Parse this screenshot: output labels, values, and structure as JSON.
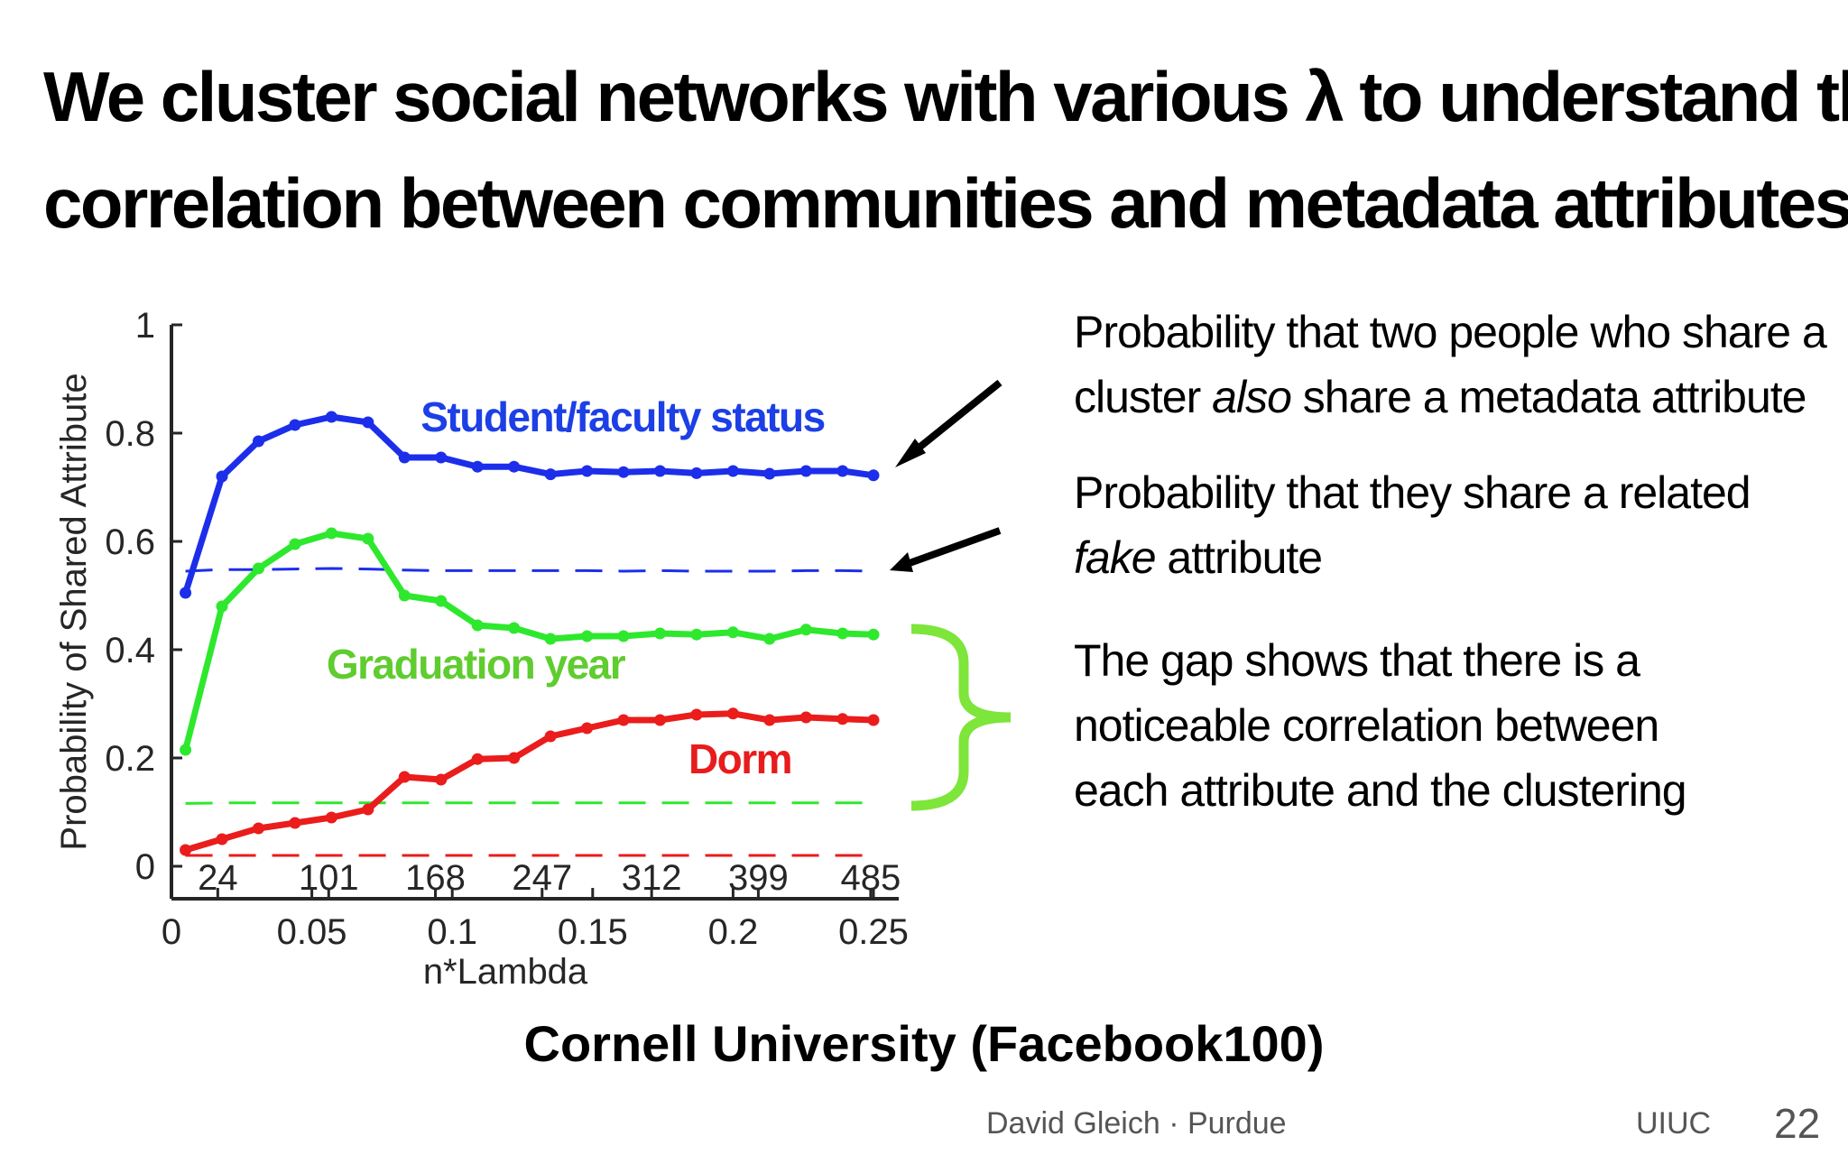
{
  "slide": {
    "title_lines": [
      "We cluster social networks with various λ to understand the",
      "correlation between communities and metadata attributes"
    ],
    "notes": {
      "note1": [
        "Probability that two people who share a",
        "cluster ",
        "also",
        " share a metadata attribute"
      ],
      "note2": [
        "Probability that they share a related",
        "fake",
        " attribute"
      ],
      "note3": [
        "The gap shows that there is a",
        "noticeable correlation between",
        "each attribute and the clustering"
      ]
    },
    "caption": "Cornell University (Facebook100)",
    "footer": {
      "author": "David Gleich · Purdue",
      "venue": "UIUC",
      "page": "22"
    }
  },
  "chart_data": {
    "type": "line",
    "xlabel": "n*Lambda",
    "ylabel": "Probability of Shared Attribute",
    "xlim": [
      0,
      0.25
    ],
    "ylim": [
      0,
      1
    ],
    "xticks": [
      "0",
      "0.05",
      "0.1",
      "0.15",
      "0.2",
      "0.25"
    ],
    "yticks": [
      "0",
      "0.2",
      "0.4",
      "0.6",
      "0.8",
      "1"
    ],
    "secondary_x_labels": [
      {
        "x": 0.0165,
        "label": "24"
      },
      {
        "x": 0.056,
        "label": "101"
      },
      {
        "x": 0.094,
        "label": "168"
      },
      {
        "x": 0.132,
        "label": "247"
      },
      {
        "x": 0.171,
        "label": "312"
      },
      {
        "x": 0.209,
        "label": "399"
      },
      {
        "x": 0.249,
        "label": "485"
      }
    ],
    "x": [
      0.005,
      0.018,
      0.031,
      0.044,
      0.057,
      0.07,
      0.083,
      0.096,
      0.109,
      0.122,
      0.135,
      0.148,
      0.161,
      0.174,
      0.187,
      0.2,
      0.213,
      0.226,
      0.239,
      0.25
    ],
    "series": [
      {
        "name": "Student/faculty status",
        "color": "#1c2eea",
        "values": [
          0.505,
          0.72,
          0.785,
          0.815,
          0.83,
          0.82,
          0.755,
          0.755,
          0.738,
          0.738,
          0.724,
          0.73,
          0.728,
          0.73,
          0.726,
          0.73,
          0.725,
          0.73,
          0.73,
          0.722
        ]
      },
      {
        "name": "Graduation year",
        "color": "#2ee82e",
        "values": [
          0.215,
          0.48,
          0.55,
          0.595,
          0.615,
          0.605,
          0.5,
          0.49,
          0.445,
          0.44,
          0.42,
          0.425,
          0.425,
          0.43,
          0.428,
          0.432,
          0.42,
          0.437,
          0.43,
          0.428
        ]
      },
      {
        "name": "Dorm",
        "color": "#ea1c1c",
        "values": [
          0.03,
          0.05,
          0.07,
          0.08,
          0.09,
          0.105,
          0.165,
          0.16,
          0.198,
          0.2,
          0.24,
          0.255,
          0.27,
          0.27,
          0.28,
          0.282,
          0.27,
          0.275,
          0.272,
          0.27
        ]
      }
    ],
    "fake_baselines": [
      {
        "color": "#1c2eea",
        "values": [
          0.545,
          0.548,
          0.548,
          0.549,
          0.55,
          0.549,
          0.547,
          0.546,
          0.546,
          0.546,
          0.546,
          0.546,
          0.545,
          0.546,
          0.545,
          0.545,
          0.545,
          0.546,
          0.546,
          0.545
        ]
      },
      {
        "color": "#2ee82e",
        "values": [
          0.116,
          0.117,
          0.117,
          0.117,
          0.117,
          0.117,
          0.117,
          0.117,
          0.117,
          0.117,
          0.117,
          0.117,
          0.117,
          0.117,
          0.117,
          0.117,
          0.117,
          0.117,
          0.117,
          0.117
        ]
      },
      {
        "color": "#ea1c1c",
        "values": [
          0.02,
          0.02,
          0.02,
          0.02,
          0.02,
          0.02,
          0.02,
          0.02,
          0.02,
          0.02,
          0.02,
          0.02,
          0.02,
          0.02,
          0.02,
          0.02,
          0.02,
          0.02,
          0.02,
          0.02
        ]
      }
    ],
    "annotations": [
      {
        "text": "Student/faculty status",
        "color": "#1c3fe6"
      },
      {
        "text": "Graduation year",
        "color": "#5fcc2f"
      },
      {
        "text": "Dorm",
        "color": "#e81c1c"
      }
    ],
    "bracket_color": "#7ee53a",
    "arrow_color": "#000000",
    "grid": false,
    "legend": "inline"
  }
}
